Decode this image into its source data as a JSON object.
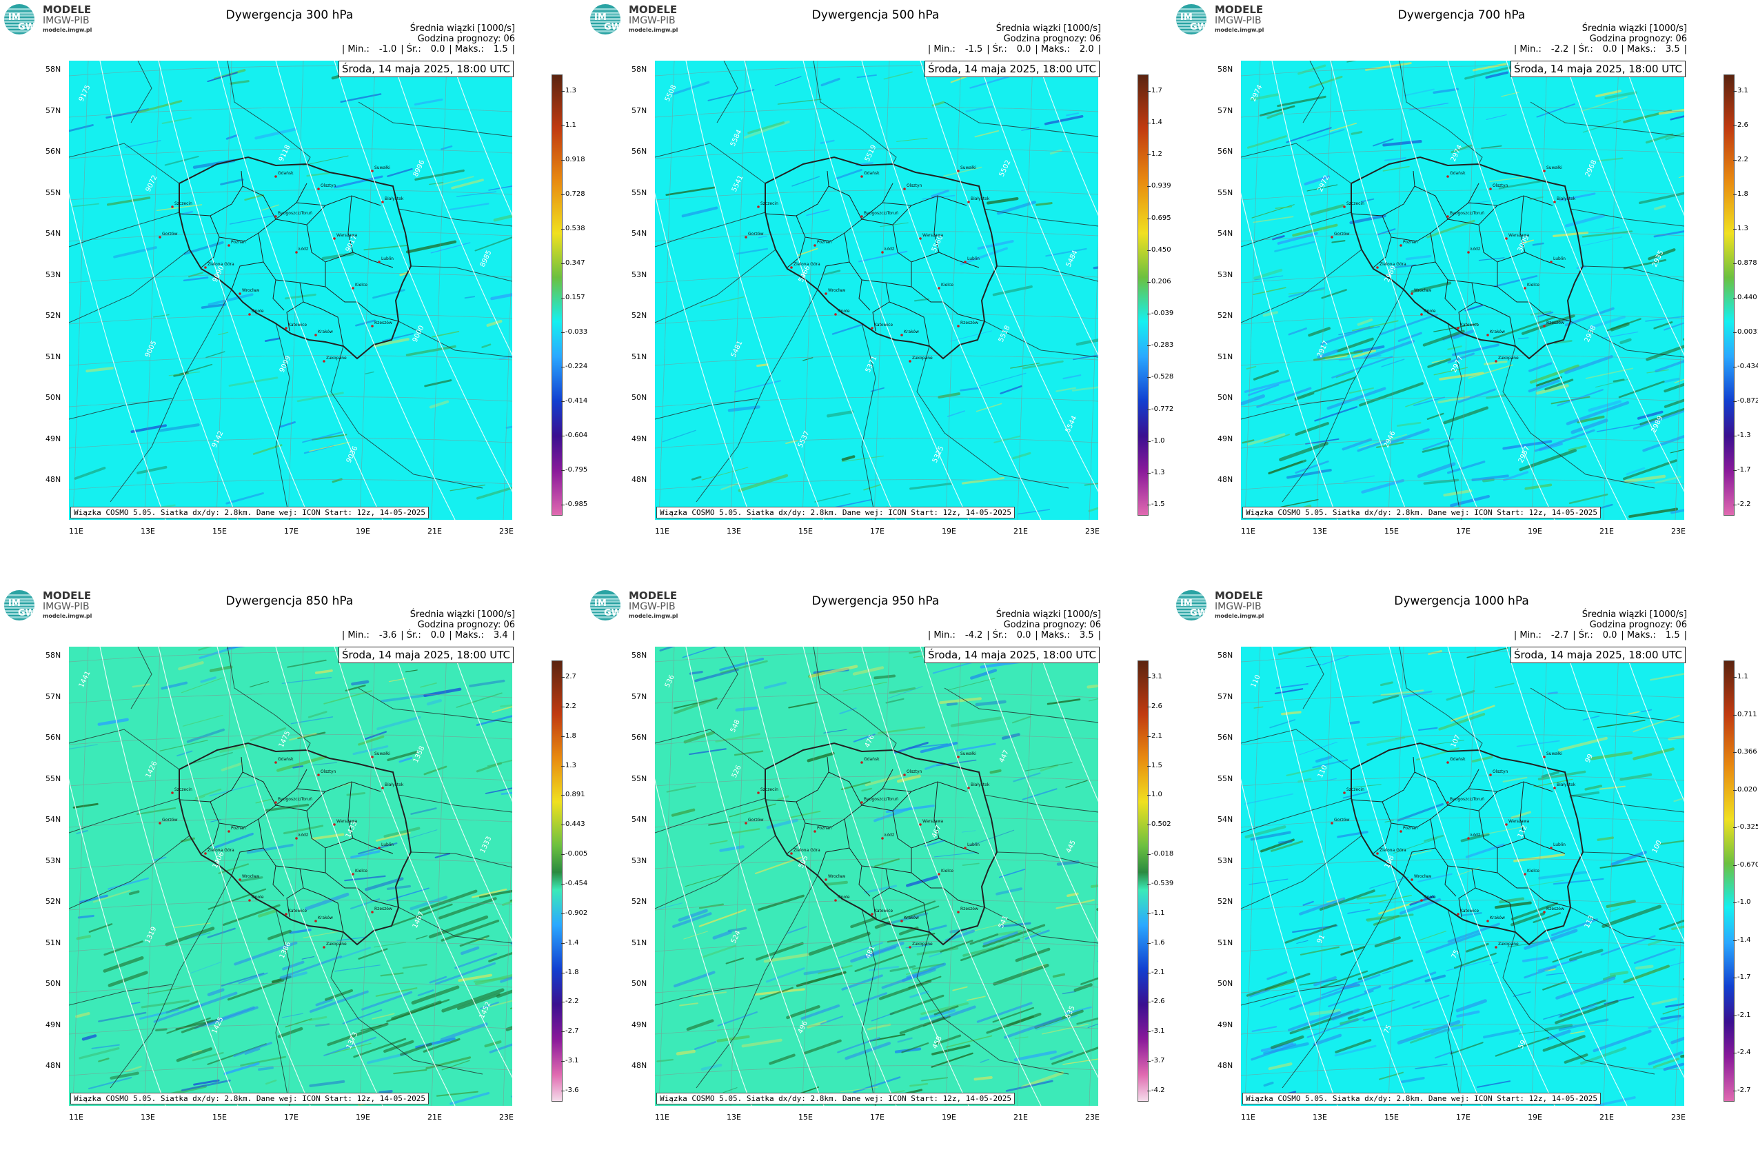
{
  "brand": {
    "name": "MODELE",
    "org": "IMGW-PIB",
    "url": "modele.imgw.pl",
    "mark_top": "IM",
    "mark_bottom": "GW"
  },
  "common": {
    "subtitle": "Średnia wiązki [1000/s]",
    "forecast_hour": "Godzina prognozy: 06",
    "date": "Środa, 14 maja 2025, 18:00 UTC",
    "footer": "Wiązka COSMO 5.05. Siatka dx/dy: 2.8km. Dane wej: ICON Start: 12z, 14-05-2025",
    "min_label": "| Min.:",
    "mean_label": "| Śr.:",
    "max_label": "| Maks.:",
    "end_bar": "|"
  },
  "lat_labels": [
    "58N",
    "57N",
    "56N",
    "55N",
    "54N",
    "53N",
    "52N",
    "51N",
    "50N",
    "49N",
    "48N"
  ],
  "lon_labels": [
    "11E",
    "13E",
    "15E",
    "17E",
    "19E",
    "21E",
    "23E"
  ],
  "cities": [
    "Gdańsk",
    "Olsztyn",
    "Białystok",
    "Szczecin",
    "Bydgoszcz/Toruń",
    "Gorzów",
    "Poznań",
    "Warszawa",
    "Łódź",
    "Zielona Góra",
    "Lublin",
    "Wrocław",
    "Kielce",
    "Opole",
    "Katowice",
    "Kraków",
    "Rzeszów",
    "Zakopane",
    "Suwałki"
  ],
  "colors": {
    "background_cyan": "#15f0f0",
    "background_green": "#3ceab8",
    "border": "#222222",
    "contour": "#ffffff"
  },
  "panels": [
    {
      "title": "Dywergencja 300 hPa",
      "min": "-1.0",
      "mean": "0.0",
      "max": "1.5",
      "bg": "#15f0f0",
      "contours": [
        "9175",
        "9072",
        "9090",
        "9099",
        "9036",
        "8996",
        "8985",
        "9005",
        "9142",
        "9118",
        "9017",
        "9000"
      ],
      "colorbar": [
        "1.3",
        "1.1",
        "0.918",
        "0.728",
        "0.538",
        "0.347",
        "0.157",
        "-0.033",
        "-0.224",
        "-0.414",
        "-0.604",
        "-0.795",
        "-0.985"
      ]
    },
    {
      "title": "Dywergencja 500 hPa",
      "min": "-1.5",
      "mean": "0.0",
      "max": "2.0",
      "bg": "#15f0f0",
      "contours": [
        "5508",
        "5541",
        "5466",
        "5371",
        "5325",
        "5502",
        "5484",
        "5481",
        "5537",
        "5519",
        "5560",
        "5518",
        "5544",
        "5584"
      ],
      "colorbar": [
        "1.7",
        "1.4",
        "1.2",
        "0.939",
        "0.695",
        "0.450",
        "0.206",
        "-0.039",
        "-0.283",
        "-0.528",
        "-0.772",
        "-1.0",
        "-1.3",
        "-1.5"
      ]
    },
    {
      "title": "Dywergencja 700 hPa",
      "min": "-2.2",
      "mean": "0.0",
      "max": "3.5",
      "bg": "#15f0f0",
      "contours": [
        "2974",
        "2972",
        "2989",
        "2977",
        "2957",
        "2968",
        "2935",
        "2917",
        "2946",
        "2974",
        "3009",
        "2938",
        "2989"
      ],
      "colorbar": [
        "3.1",
        "2.6",
        "2.2",
        "1.8",
        "1.3",
        "0.878",
        "0.440",
        "0.0031",
        "-0.434",
        "-0.872",
        "-1.3",
        "-1.7",
        "-2.2"
      ]
    },
    {
      "title": "Dywergencja 850 hPa",
      "min": "-3.6",
      "mean": "0.0",
      "max": "3.4",
      "bg": "#3ceab8",
      "contours": [
        "1441",
        "1426",
        "1406",
        "1386",
        "1373",
        "1358",
        "1333",
        "1319",
        "1425",
        "1475",
        "1433",
        "1467",
        "1452"
      ],
      "colorbar": [
        "2.7",
        "2.2",
        "1.8",
        "1.3",
        "0.891",
        "0.443",
        "-0.005",
        "-0.454",
        "-0.902",
        "-1.4",
        "-1.8",
        "-2.2",
        "-2.7",
        "-3.1",
        "-3.6"
      ]
    },
    {
      "title": "Dywergencja 950 hPa",
      "min": "-4.2",
      "mean": "0.0",
      "max": "3.5",
      "bg": "#3ceab8",
      "contours": [
        "536",
        "526",
        "505",
        "481",
        "458",
        "447",
        "445",
        "524",
        "496",
        "476",
        "467",
        "541",
        "535",
        "548"
      ],
      "colorbar": [
        "3.1",
        "2.6",
        "2.1",
        "1.5",
        "1.0",
        "0.502",
        "-0.018",
        "-0.539",
        "-1.1",
        "-1.6",
        "-2.1",
        "-2.6",
        "-3.1",
        "-3.7",
        "-4.2"
      ]
    },
    {
      "title": "Dywergencja 1000 hPa",
      "min": "-2.7",
      "mean": "0.0",
      "max": "1.5",
      "bg": "#15f0f0",
      "contours": [
        "110",
        "110",
        "108",
        "75",
        "59",
        "99",
        "100",
        "91",
        "75",
        "107",
        "112",
        "113"
      ],
      "colorbar": [
        "1.1",
        "0.711",
        "0.366",
        "0.020",
        "-0.325",
        "-0.670",
        "-1.0",
        "-1.4",
        "-1.7",
        "-2.1",
        "-2.4",
        "-2.7"
      ]
    }
  ]
}
